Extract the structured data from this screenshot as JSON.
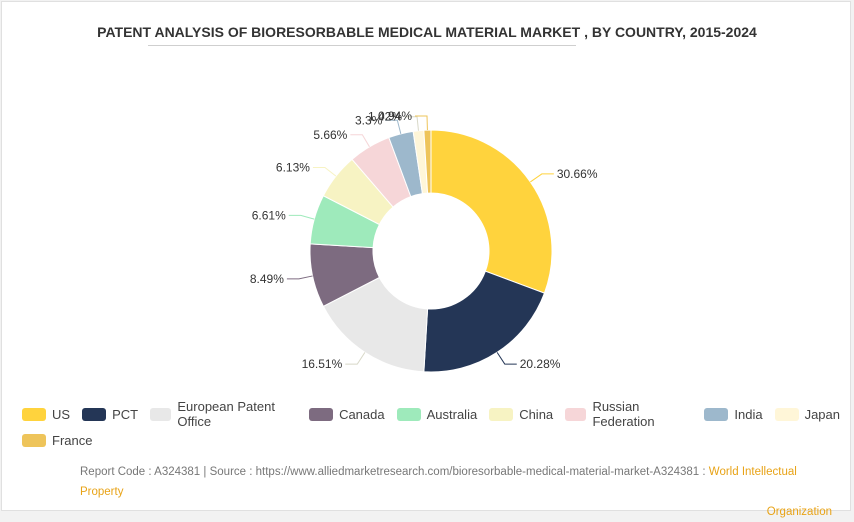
{
  "title": "PATENT ANALYSIS OF BIORESORBABLE MEDICAL MATERIAL MARKET , BY COUNTRY, 2015-2024",
  "chart_data": {
    "type": "pie",
    "donut": true,
    "categories": [
      "US",
      "PCT",
      "European Patent Office",
      "Canada",
      "Australia",
      "China",
      "Russian Federation",
      "India",
      "Japan",
      "France"
    ],
    "values": [
      30.66,
      20.28,
      16.51,
      8.49,
      6.61,
      6.13,
      5.66,
      3.3,
      1.42,
      0.94
    ],
    "labels": [
      "30.66%",
      "20.28%",
      "16.51%",
      "8.49%",
      "6.61%",
      "6.13%",
      "5.66%",
      "3.3%",
      "1.42%",
      "0.94%"
    ],
    "colors": [
      "#ffd33d",
      "#243656",
      "#e8e8e8",
      "#7d6b80",
      "#9eeabb",
      "#f7f3c3",
      "#f6d6d8",
      "#9db8cc",
      "#fff6d8",
      "#eec45a"
    ],
    "legend_position": "bottom"
  },
  "legend_rows": [
    [
      "US",
      "PCT",
      "European Patent Office",
      "Canada",
      "Australia",
      "China",
      "Russian Federation",
      "India",
      "Japan"
    ],
    [
      "France"
    ]
  ],
  "footer": {
    "report_code": "Report Code : A324381",
    "separator": "|",
    "source": "Source : https://www.alliedmarketresearch.com/bioresorbable-medical-material-market-A324381 :",
    "org_line1": "World Intellectual Property",
    "org_line2": "Organization"
  }
}
